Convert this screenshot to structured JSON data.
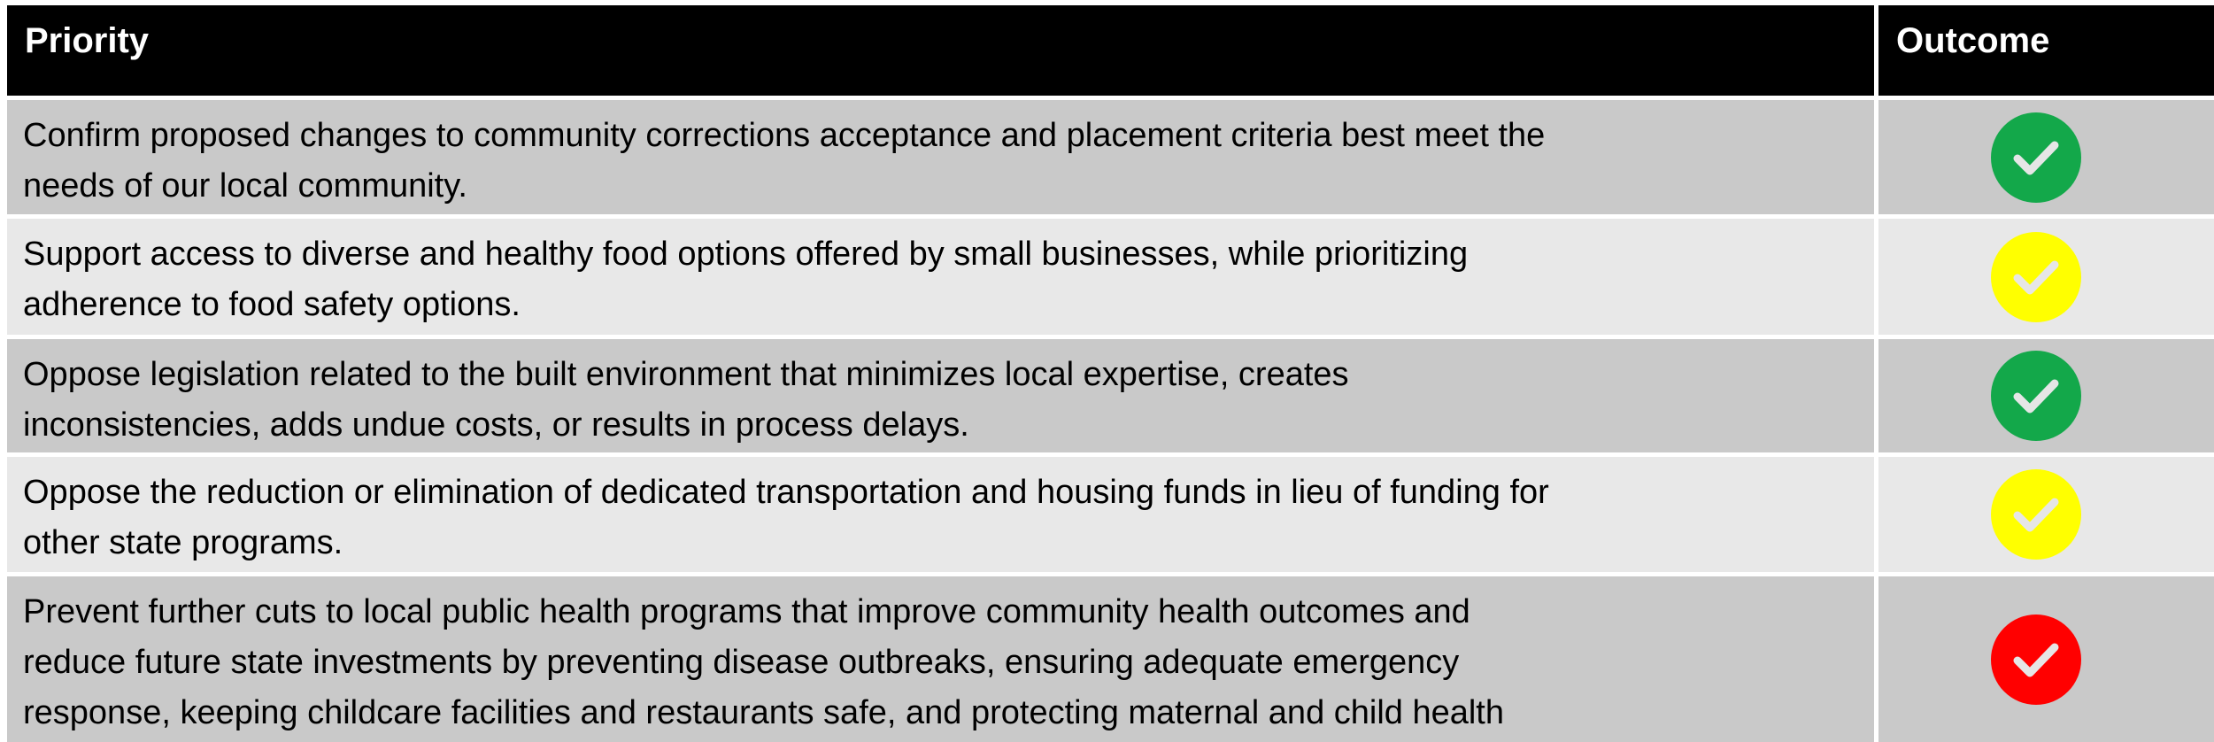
{
  "table": {
    "headers": [
      "Priority",
      "Outcome"
    ],
    "rows": [
      {
        "priority": [
          "Confirm proposed changes to community corrections acceptance and placement criteria best meet the",
          "needs of our local community."
        ],
        "color": "#13a84a"
      },
      {
        "priority": [
          "Support access to diverse and healthy food options offered by small businesses, while prioritizing",
          "adherence to food safety options."
        ],
        "color": "#ffff00"
      },
      {
        "priority": [
          "Oppose legislation related to the built environment that minimizes local expertise, creates",
          "inconsistencies, adds undue costs, or results in process delays."
        ],
        "color": "#13a84a"
      },
      {
        "priority": [
          "Oppose the reduction or elimination of dedicated transportation and housing funds in lieu of funding for",
          "other state programs."
        ],
        "color": "#ffff00"
      },
      {
        "priority": [
          "Prevent further cuts to local public health programs that improve community health outcomes and",
          "reduce future state investments by preventing disease outbreaks, ensuring adequate emergency",
          "response, keeping childcare facilities and restaurants safe, and protecting maternal and child health"
        ],
        "color": "#ff0000"
      }
    ]
  }
}
